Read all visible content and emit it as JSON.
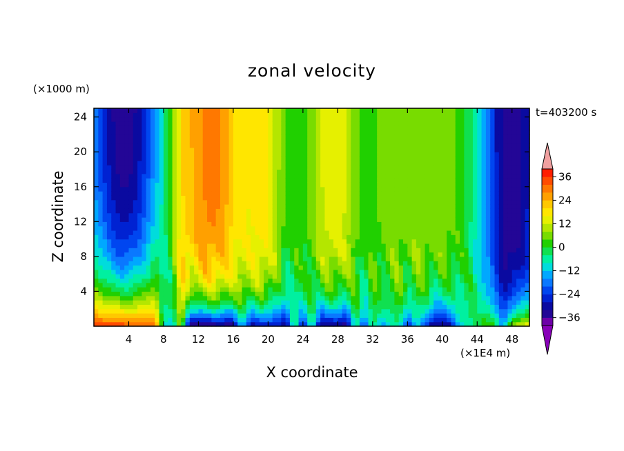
{
  "chart_data": {
    "type": "heatmap",
    "title": "zonal velocity",
    "xlabel": "X coordinate",
    "ylabel": "Z coordinate",
    "x_unit": "(×1E4 m)",
    "z_unit": "(×1000 m)",
    "time_label": "t=403200 s",
    "xlim": [
      0,
      50
    ],
    "ylim": [
      0,
      25
    ],
    "x_ticks": [
      4,
      8,
      12,
      16,
      20,
      24,
      28,
      32,
      36,
      40,
      44,
      48
    ],
    "y_ticks": [
      4,
      8,
      12,
      16,
      20,
      24
    ],
    "x_tick_labels": [
      "4",
      "8",
      "12",
      "16",
      "20",
      "24",
      "28",
      "32",
      "36",
      "40",
      "44",
      "48"
    ],
    "y_tick_labels": [
      "4",
      "8",
      "12",
      "16",
      "20",
      "24"
    ],
    "colorbar": {
      "levels": [
        -40,
        -36,
        -32,
        -28,
        -24,
        -20,
        -16,
        -12,
        -8,
        -4,
        0,
        4,
        8,
        12,
        16,
        20,
        24,
        28,
        32,
        36,
        40
      ],
      "tick_values": [
        -36,
        -24,
        -12,
        0,
        12,
        24,
        36
      ],
      "tick_labels": [
        "−36",
        "−24",
        "−12",
        "0",
        "12",
        "24",
        "36"
      ],
      "colors": [
        "#6e00a8",
        "#230696",
        "#0a0aa0",
        "#0022d2",
        "#0046f0",
        "#0a78ff",
        "#00a8ff",
        "#00dcdc",
        "#00f0a0",
        "#10e050",
        "#20d000",
        "#78dc00",
        "#b4e600",
        "#e6f000",
        "#ffe600",
        "#ffc800",
        "#ffa000",
        "#ff7800",
        "#ff4c00",
        "#ff1e00"
      ],
      "extend_low_color": "#8800b8",
      "extend_high_color": "#f0a0a0"
    },
    "description_fields": {
      "surface_rows": [
        {
          "z": 0.3,
          "points": [
            [
              0,
              36
            ],
            [
              7,
              34
            ],
            [
              8,
              -8
            ],
            [
              9,
              -14
            ],
            [
              10,
              12
            ],
            [
              11,
              -40
            ],
            [
              16,
              -36
            ],
            [
              17,
              -12
            ],
            [
              18,
              -32
            ],
            [
              21,
              -28
            ],
            [
              22,
              -36
            ],
            [
              23,
              -2
            ],
            [
              24,
              -28
            ],
            [
              25,
              -6
            ],
            [
              26,
              -34
            ],
            [
              29,
              -36
            ],
            [
              30,
              -4
            ],
            [
              31,
              -24
            ],
            [
              32,
              0
            ],
            [
              33,
              -16
            ],
            [
              35,
              -4
            ],
            [
              36,
              -28
            ],
            [
              37,
              -10
            ],
            [
              38,
              -22
            ],
            [
              39,
              -36
            ],
            [
              41,
              -30
            ],
            [
              42,
              -12
            ],
            [
              43,
              -4
            ],
            [
              44,
              -2
            ],
            [
              45,
              6
            ],
            [
              46,
              2
            ],
            [
              47,
              -16
            ],
            [
              48,
              10
            ],
            [
              50,
              16
            ]
          ]
        }
      ]
    }
  }
}
